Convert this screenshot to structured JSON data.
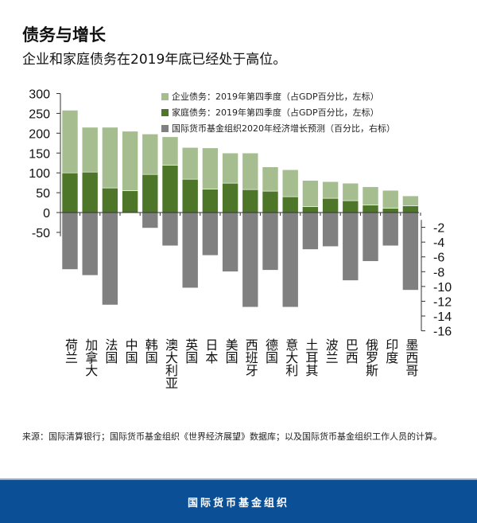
{
  "header": {
    "title": "债务与增长",
    "subtitle": "企业和家庭债务在2019年底已经处于高位。"
  },
  "chart_data": {
    "type": "bar",
    "stacked": true,
    "categories": [
      "荷兰",
      "加拿大",
      "法国",
      "中国",
      "韩国",
      "澳大利亚",
      "英国",
      "日本",
      "美国",
      "西班牙",
      "德国",
      "意大利",
      "土耳其",
      "波兰",
      "巴西",
      "俄罗斯",
      "印度",
      "墨西哥"
    ],
    "series": [
      {
        "name": "家庭债务：2019年第四季度（占GDP百分比，左标）",
        "axis": "left",
        "color": "#4e7628",
        "values": [
          100,
          102,
          62,
          55,
          96,
          119,
          84,
          59,
          74,
          58,
          54,
          40,
          15,
          36,
          30,
          19,
          11,
          17
        ]
      },
      {
        "name": "企业债务：2019年第四季度（占GDP百分比，左标）",
        "axis": "left",
        "color": "#a6bd90",
        "values": [
          158,
          113,
          153,
          150,
          102,
          72,
          80,
          104,
          76,
          92,
          61,
          68,
          66,
          42,
          44,
          46,
          45,
          25
        ]
      },
      {
        "name": "国际货币基金组织2020年经济增长预测（百分比，右标）",
        "axis": "right",
        "color": "#808080",
        "values": [
          -7.7,
          -8.5,
          -12.5,
          null,
          -2.1,
          -4.5,
          -10.2,
          -5.8,
          -8.0,
          -12.8,
          -7.8,
          -12.8,
          -5.0,
          -4.6,
          -9.2,
          -6.6,
          -4.5,
          -10.5
        ]
      }
    ],
    "left_axis": {
      "ylim": [
        -50,
        300
      ],
      "ticks": [
        "300",
        "250",
        "200",
        "150",
        "100",
        "50",
        "0",
        "-50"
      ]
    },
    "right_axis": {
      "ylim": [
        -16,
        0
      ],
      "ticks": [
        "-2",
        "-4",
        "-6",
        "-8",
        "-10",
        "-12",
        "-14",
        "-16"
      ]
    },
    "legend_placement": "top-right",
    "grid": false
  },
  "source": "来源：国际清算银行；国际货币基金组织《世界经济展望》数据库；以及国际货币基金组织工作人员的计算。",
  "footer": {
    "org": "国际货币基金组织"
  }
}
